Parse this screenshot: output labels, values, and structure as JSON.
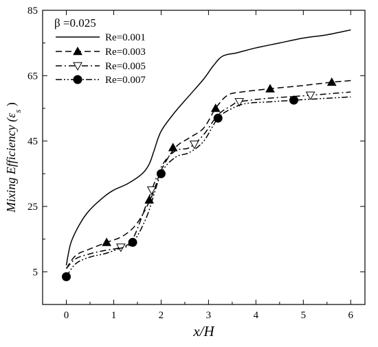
{
  "chart_data": {
    "type": "line",
    "annotation": "β =0.025",
    "xlabel": "x/H",
    "ylabel": "Mixing Efficiency (ε",
    "ylabel_subscript": "s",
    "ylabel_close": ")",
    "xlim": [
      -0.5,
      6.3
    ],
    "ylim": [
      -5,
      85
    ],
    "xticks": [
      0,
      1,
      2,
      3,
      4,
      5,
      6
    ],
    "yticks": [
      5,
      25,
      45,
      65,
      85
    ],
    "legend_position": "top-left",
    "grid": false,
    "series": [
      {
        "name": "Re=0.001",
        "line_style": "solid",
        "marker": "none",
        "x": [
          0,
          0.1,
          0.3,
          0.5,
          0.8,
          1.0,
          1.3,
          1.6,
          1.75,
          1.85,
          2.0,
          2.3,
          2.6,
          2.9,
          3.1,
          3.3,
          3.6,
          4.0,
          4.5,
          5.0,
          5.5,
          6.0
        ],
        "y": [
          7,
          14,
          20,
          24,
          28,
          30,
          32,
          35,
          38,
          42,
          48,
          54,
          59,
          64,
          68,
          71,
          72,
          73.5,
          75,
          76.5,
          77.5,
          79
        ]
      },
      {
        "name": "Re=0.003",
        "line_style": "dashed",
        "marker": "filled-triangle",
        "x": [
          0,
          0.2,
          0.5,
          0.85,
          1.2,
          1.5,
          1.8,
          2.0,
          2.3,
          2.6,
          2.9,
          3.15,
          3.4,
          3.7,
          4.3,
          5.0,
          5.6,
          6.0
        ],
        "y": [
          6,
          10,
          12,
          14,
          16,
          20,
          28,
          36,
          43,
          46,
          49,
          55,
          59,
          60,
          61,
          62,
          63,
          63.5
        ],
        "marker_x": [
          0.85,
          1.75,
          2.25,
          3.15,
          4.3,
          5.6
        ],
        "marker_y": [
          14,
          27,
          43,
          55,
          61,
          63
        ]
      },
      {
        "name": "Re=0.005",
        "line_style": "dash-dot",
        "marker": "open-triangle-down",
        "x": [
          0,
          0.2,
          0.5,
          0.8,
          1.15,
          1.4,
          1.7,
          2.0,
          2.3,
          2.6,
          2.9,
          3.2,
          3.5,
          3.65,
          4.2,
          5.15,
          6.0
        ],
        "y": [
          6,
          9,
          10.5,
          11.5,
          12.5,
          15,
          26,
          37,
          42,
          43,
          47,
          53,
          56,
          57,
          58,
          59,
          60
        ],
        "marker_x": [
          1.15,
          1.8,
          2.7,
          3.65,
          5.15
        ],
        "marker_y": [
          12.5,
          30,
          44,
          57,
          59
        ]
      },
      {
        "name": "Re=0.007",
        "line_style": "dash-dot-dot",
        "marker": "filled-circle",
        "x": [
          0,
          0.2,
          0.5,
          0.8,
          1.1,
          1.4,
          1.7,
          2.0,
          2.3,
          2.6,
          2.9,
          3.2,
          3.5,
          3.8,
          4.3,
          4.8,
          5.4,
          6.0
        ],
        "y": [
          3.5,
          7.5,
          9.5,
          10.5,
          12,
          14,
          22,
          35,
          40,
          41.5,
          45,
          52,
          55,
          56.5,
          57,
          57.5,
          58,
          58.5
        ],
        "marker_x": [
          0,
          1.4,
          2.0,
          3.2,
          4.8
        ],
        "marker_y": [
          3.5,
          14,
          35,
          52,
          57.5
        ]
      }
    ]
  }
}
